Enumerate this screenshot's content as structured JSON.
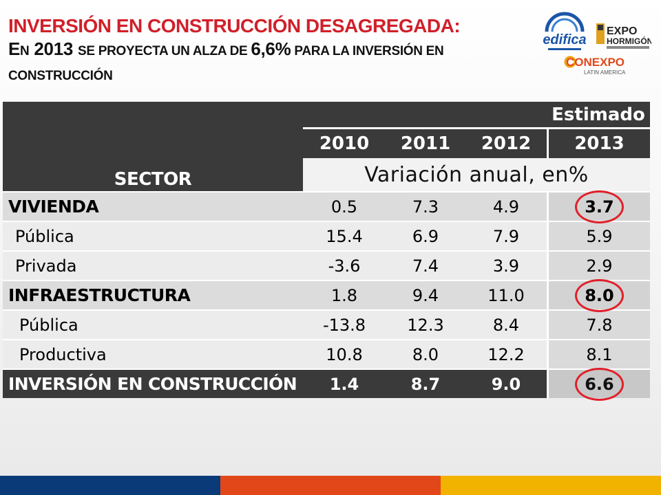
{
  "title": {
    "line1": "INVERSIÓN EN CONSTRUCCIÓN DESAGREGADA:",
    "line2_part1": "E",
    "line2_part2": "N",
    "line2_part3": " 2013 ",
    "line2_part4": "SE PROYECTA UN ALZA DE ",
    "line2_part5": "6,6%",
    "line2_part6": " PARA LA INVERSIÓN EN",
    "line3": "CONSTRUCCIÓN"
  },
  "logos": {
    "edifica": "edifica",
    "expo": "EXPO",
    "hormigon": "HORMIGÓN",
    "conexpo": "CONEXPO",
    "latin_america": "LATIN AMERICA"
  },
  "table": {
    "sector_header": "SECTOR",
    "estimado_header": "Estimado",
    "years": [
      "2010",
      "2011",
      "2012",
      "2013"
    ],
    "subheader": "Variación anual, en%",
    "rows": [
      {
        "sector": "VIVIENDA",
        "values": [
          "0.5",
          "7.3",
          "4.9",
          "3.7"
        ]
      },
      {
        "sector": "Pública",
        "values": [
          "15.4",
          "6.9",
          "7.9",
          "5.9"
        ]
      },
      {
        "sector": "Privada",
        "values": [
          "-3.6",
          "7.4",
          "3.9",
          "2.9"
        ]
      },
      {
        "sector": "INFRAESTRUCTURA",
        "values": [
          "1.8",
          "9.4",
          "11.0",
          "8.0"
        ]
      },
      {
        "sector": "Pública",
        "values": [
          "-13.8",
          "12.3",
          "8.4",
          "7.8"
        ]
      },
      {
        "sector": "Productiva",
        "values": [
          "10.8",
          "8.0",
          "12.2",
          "8.1"
        ]
      },
      {
        "sector": "INVERSIÓN EN CONSTRUCCIÓN",
        "values": [
          "1.4",
          "8.7",
          "9.0",
          "6.6"
        ]
      }
    ]
  },
  "colors": {
    "accent_red": "#d0202a",
    "header_dark": "#3a3a3a",
    "footer_blue": "#0b3a78",
    "footer_orange": "#e2471a",
    "footer_yellow": "#f2b200"
  }
}
